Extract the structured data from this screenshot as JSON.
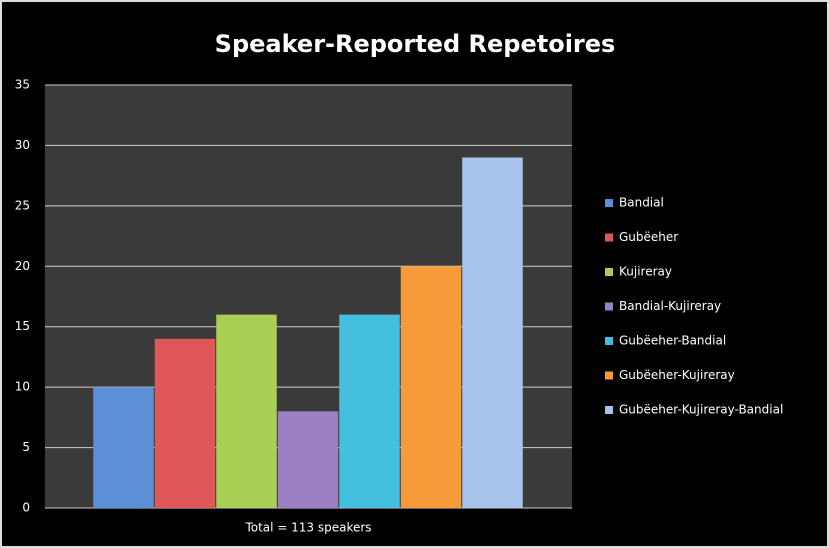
{
  "chart_data": {
    "type": "bar",
    "title": "Speaker-Reported Repetoires",
    "categories": [
      "Total = 113 speakers"
    ],
    "series": [
      {
        "name": "Bandial",
        "color": "#5b8fd6",
        "values": [
          10
        ]
      },
      {
        "name": "Gubëeher",
        "color": "#e0575a",
        "values": [
          14
        ]
      },
      {
        "name": "Kujireray",
        "color": "#a9cf55",
        "values": [
          16
        ]
      },
      {
        "name": "Bandial-Kujireray",
        "color": "#9b7fc3",
        "values": [
          8
        ]
      },
      {
        "name": "Gubëeher-Bandial",
        "color": "#45bfe0",
        "values": [
          16
        ]
      },
      {
        "name": "Gubëeher-Kujireray",
        "color": "#f79a3a",
        "values": [
          20
        ]
      },
      {
        "name": "Gubëeher-Kujireray-Bandial",
        "color": "#a9c4ec",
        "values": [
          29
        ]
      }
    ],
    "ylim": [
      0,
      35
    ],
    "yticks": [
      0,
      5,
      10,
      15,
      20,
      25,
      30,
      35
    ],
    "grid": true,
    "legend": "right"
  }
}
